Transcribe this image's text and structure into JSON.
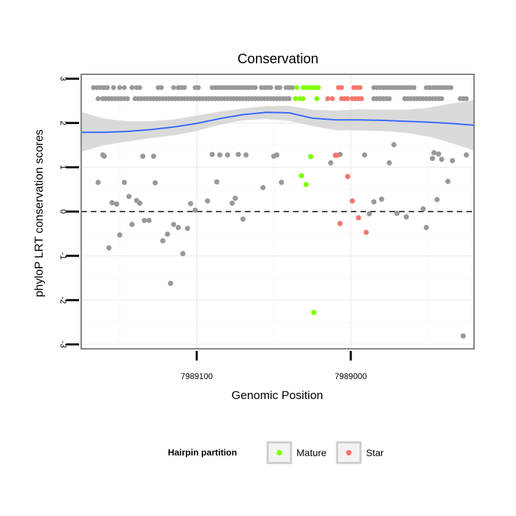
{
  "chart_data": {
    "type": "scatter",
    "title": "Conservation",
    "xlabel": "Genomic Position",
    "ylabel": "phyloP LRT conservation scores",
    "x_reversed": true,
    "xlim": [
      7989175,
      7988920
    ],
    "ylim": [
      -3.1,
      3.1
    ],
    "x_ticks": [
      7989100,
      7989000
    ],
    "x_tick_labels": [
      "7989100",
      "7989000"
    ],
    "y_ticks": [
      -3,
      -2,
      -1,
      0,
      1,
      2,
      3
    ],
    "y_tick_labels": [
      "-3",
      "-2",
      "-1",
      "0",
      "1",
      "2",
      "3"
    ],
    "grid": true,
    "reference_line": 0,
    "legend": {
      "title": "Hairpin partition",
      "position": "bottom",
      "entries": [
        {
          "label": "Mature",
          "color": "#7fff00"
        },
        {
          "label": "Star",
          "color": "#f8766d"
        }
      ]
    },
    "colors": {
      "other": "#999999",
      "mature": "#7fff00",
      "star": "#f8766d",
      "smooth": "#3366ff",
      "band": "#d3d3d3"
    },
    "series": [
      {
        "group": "other",
        "points": [
          [
            7989164,
            0.66
          ],
          [
            7989161,
            1.28
          ],
          [
            7989160,
            1.25
          ],
          [
            7989157,
            -0.82
          ],
          [
            7989155,
            0.2
          ],
          [
            7989152,
            0.17
          ],
          [
            7989150,
            -0.53
          ],
          [
            7989147,
            0.66
          ],
          [
            7989144,
            0.34
          ],
          [
            7989142,
            -0.29
          ],
          [
            7989139,
            0.25
          ],
          [
            7989137,
            0.19
          ],
          [
            7989135,
            1.25
          ],
          [
            7989134,
            -0.2
          ],
          [
            7989131,
            -0.2
          ],
          [
            7989128,
            1.25
          ],
          [
            7989127,
            0.65
          ],
          [
            7989122,
            -0.66
          ],
          [
            7989119,
            -0.51
          ],
          [
            7989117,
            -1.62
          ],
          [
            7989115,
            -0.29
          ],
          [
            7989112,
            -0.36
          ],
          [
            7989109,
            -0.95
          ],
          [
            7989106,
            -0.38
          ],
          [
            7989104,
            0.18
          ],
          [
            7989101,
            0.03
          ],
          [
            7989093,
            0.24
          ],
          [
            7989090,
            1.29
          ],
          [
            7989087,
            0.67
          ],
          [
            7989085,
            1.28
          ],
          [
            7989080,
            1.28
          ],
          [
            7989077,
            0.19
          ],
          [
            7989075,
            0.3
          ],
          [
            7989073,
            1.29
          ],
          [
            7989070,
            -0.17
          ],
          [
            7989068,
            1.28
          ],
          [
            7989057,
            0.54
          ],
          [
            7989050,
            1.25
          ],
          [
            7989048,
            1.28
          ],
          [
            7989045,
            0.66
          ],
          [
            7989013,
            1.1
          ],
          [
            7989007,
            1.29
          ],
          [
            7988991,
            1.28
          ],
          [
            7988988,
            -0.05
          ],
          [
            7988985,
            0.22
          ],
          [
            7988980,
            0.28
          ],
          [
            7988975,
            1.1
          ],
          [
            7988972,
            1.51
          ],
          [
            7988970,
            -0.04
          ],
          [
            7988964,
            -0.12
          ],
          [
            7988953,
            0.06
          ],
          [
            7988951,
            -0.36
          ],
          [
            7988947,
            1.2
          ],
          [
            7988946,
            1.33
          ],
          [
            7988944,
            0.27
          ],
          [
            7988943,
            1.3
          ],
          [
            7988941,
            1.18
          ],
          [
            7988937,
            0.68
          ],
          [
            7988934,
            1.15
          ],
          [
            7988927,
            -2.81
          ],
          [
            7988925,
            1.28
          ]
        ]
      },
      {
        "group": "mature",
        "points": [
          [
            7989026,
            1.24
          ],
          [
            7989032,
            0.81
          ],
          [
            7989029,
            0.61
          ],
          [
            7989024,
            -2.28
          ]
        ]
      },
      {
        "group": "star",
        "points": [
          [
            7989009,
            1.27
          ],
          [
            7989010,
            1.27
          ],
          [
            7989002,
            0.79
          ],
          [
            7988999,
            0.24
          ],
          [
            7988995,
            -0.14
          ],
          [
            7989007,
            -0.27
          ],
          [
            7988990,
            -0.47
          ]
        ]
      }
    ],
    "rug_top": {
      "row1_y": 2.8,
      "row2_y": 2.55,
      "row1_points": {
        "other": [
          7989167,
          7989165,
          7989163,
          7989161,
          7989160,
          7989158,
          7989154,
          7989150,
          7989147,
          7989142,
          7989139,
          7989137,
          7989125,
          7989123,
          7989115,
          7989112,
          7989110,
          7989108,
          7989101,
          7989099,
          7989090,
          7989088,
          7989086,
          7989084,
          7989082,
          7989080,
          7989078,
          7989076,
          7989074,
          7989072,
          7989070,
          7989068,
          7989066,
          7989064,
          7989062,
          7989058,
          7989056,
          7989054,
          7989052,
          7989048,
          7989046,
          7989042,
          7989040,
          7989038,
          7988985,
          7988983,
          7988981,
          7988979,
          7988977,
          7988975,
          7988973,
          7988971,
          7988969,
          7988967,
          7988965,
          7988963,
          7988961,
          7988959,
          7988951,
          7988949,
          7988947,
          7988945,
          7988943,
          7988941,
          7988939,
          7988937,
          7988935
        ],
        "mature": [
          7989035,
          7989031,
          7989029,
          7989027,
          7989025,
          7989023,
          7989021
        ],
        "star": [
          7989008,
          7989006,
          7988998,
          7988996,
          7988994
        ]
      },
      "row2_points": {
        "other": [
          7989164,
          7989161,
          7989159,
          7989157,
          7989155,
          7989153,
          7989151,
          7989149,
          7989147,
          7989145,
          7989140,
          7989138,
          7989136,
          7989134,
          7989132,
          7989130,
          7989128,
          7989126,
          7989124,
          7989122,
          7989120,
          7989118,
          7989116,
          7989114,
          7989112,
          7989110,
          7989108,
          7989106,
          7989104,
          7989102,
          7989100,
          7989098,
          7989096,
          7989094,
          7989092,
          7989090,
          7989088,
          7989086,
          7989084,
          7989082,
          7989080,
          7989078,
          7989076,
          7989074,
          7989072,
          7989070,
          7989068,
          7989066,
          7989064,
          7989062,
          7989060,
          7989058,
          7989056,
          7989054,
          7989052,
          7989050,
          7989048,
          7989046,
          7989044,
          7989042,
          7989040,
          7988985,
          7988983,
          7988981,
          7988979,
          7988977,
          7988975,
          7988965,
          7988963,
          7988961,
          7988959,
          7988957,
          7988955,
          7988953,
          7988951,
          7988949,
          7988947,
          7988945,
          7988943,
          7988941,
          7988929,
          7988927,
          7988925
        ],
        "mature": [
          7989036,
          7989033,
          7989031,
          7989022
        ],
        "star": [
          7989015,
          7989012,
          7989006,
          7989004,
          7989002,
          7988999,
          7988997,
          7988995,
          7988993
        ]
      }
    },
    "smooth_line": {
      "x": [
        7989175,
        7989160,
        7989145,
        7989130,
        7989115,
        7989100,
        7989085,
        7989070,
        7989055,
        7989040,
        7989025,
        7989010,
        7988995,
        7988980,
        7988965,
        7988950,
        7988935,
        7988920
      ],
      "y": [
        1.79,
        1.79,
        1.81,
        1.85,
        1.91,
        1.99,
        2.1,
        2.19,
        2.24,
        2.23,
        2.11,
        2.07,
        2.07,
        2.06,
        2.04,
        2.02,
        1.99,
        1.95
      ],
      "lower": [
        1.35,
        1.5,
        1.58,
        1.66,
        1.72,
        1.82,
        1.96,
        2.06,
        2.09,
        2.05,
        1.93,
        1.84,
        1.83,
        1.82,
        1.78,
        1.7,
        1.55,
        1.38
      ],
      "upper": [
        2.25,
        2.1,
        2.04,
        2.04,
        2.08,
        2.17,
        2.26,
        2.33,
        2.38,
        2.39,
        2.3,
        2.28,
        2.31,
        2.3,
        2.3,
        2.34,
        2.44,
        2.52
      ]
    }
  }
}
